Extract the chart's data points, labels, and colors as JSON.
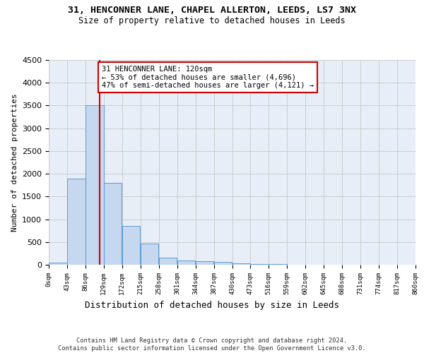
{
  "title1": "31, HENCONNER LANE, CHAPEL ALLERTON, LEEDS, LS7 3NX",
  "title2": "Size of property relative to detached houses in Leeds",
  "xlabel": "Distribution of detached houses by size in Leeds",
  "ylabel": "Number of detached properties",
  "bin_edges": [
    0,
    43,
    86,
    129,
    172,
    215,
    258,
    301,
    344,
    387,
    430,
    473,
    516,
    559,
    602,
    645,
    688,
    731,
    774,
    817,
    860
  ],
  "bar_heights": [
    50,
    1900,
    3500,
    1800,
    850,
    460,
    160,
    100,
    70,
    55,
    35,
    20,
    10,
    5,
    3,
    2,
    1,
    1,
    0,
    0
  ],
  "bar_color": "#c5d8f0",
  "bar_edgecolor": "#5b9bd5",
  "property_size": 120,
  "vline_color": "#cc0000",
  "annotation_text": "31 HENCONNER LANE: 120sqm\n← 53% of detached houses are smaller (4,696)\n47% of semi-detached houses are larger (4,121) →",
  "annotation_box_edgecolor": "#cc0000",
  "annotation_box_facecolor": "#ffffff",
  "annotation_fontsize": 7.5,
  "ylim": [
    0,
    4500
  ],
  "yticks": [
    0,
    500,
    1000,
    1500,
    2000,
    2500,
    3000,
    3500,
    4000,
    4500
  ],
  "grid_color": "#cccccc",
  "background_color": "#e8eef7",
  "footer_text": "Contains HM Land Registry data © Crown copyright and database right 2024.\nContains public sector information licensed under the Open Government Licence v3.0.",
  "tick_labels": [
    "0sqm",
    "43sqm",
    "86sqm",
    "129sqm",
    "172sqm",
    "215sqm",
    "258sqm",
    "301sqm",
    "344sqm",
    "387sqm",
    "430sqm",
    "473sqm",
    "516sqm",
    "559sqm",
    "602sqm",
    "645sqm",
    "688sqm",
    "731sqm",
    "774sqm",
    "817sqm",
    "860sqm"
  ]
}
